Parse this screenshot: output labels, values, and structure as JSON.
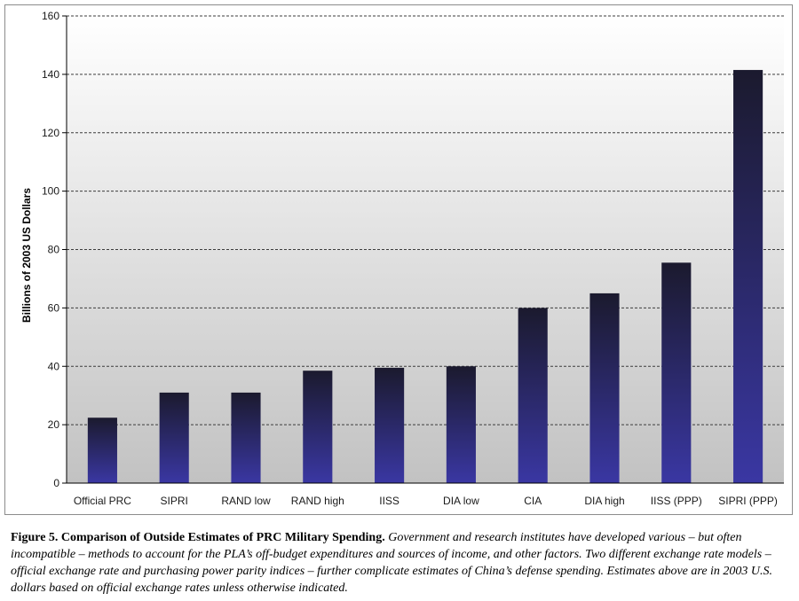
{
  "chart_data": {
    "type": "bar",
    "title": "",
    "xlabel": "",
    "ylabel": "Billions of 2003 US Dollars",
    "ylim": [
      0,
      160
    ],
    "yticks": [
      0,
      20,
      40,
      60,
      80,
      100,
      120,
      140,
      160
    ],
    "grid": true,
    "categories": [
      "Official PRC",
      "SIPRI",
      "RAND low",
      "RAND high",
      "IISS",
      "DIA low",
      "CIA",
      "DIA high",
      "IISS (PPP)",
      "SIPRI (PPP)"
    ],
    "values": [
      22.4,
      31,
      31,
      38.5,
      39.5,
      40,
      60,
      65,
      75.5,
      141.5
    ],
    "colors": {
      "bar_top": "#1b1a2e",
      "bar_bottom": "#3a37a3",
      "bg_top": "#ffffff",
      "bg_bottom": "#c2c2c2"
    }
  },
  "caption": {
    "lead": "Figure 5.  Comparison of Outside Estimates of PRC Military Spending.",
    "body": "Government and research institutes have developed various – but often incompatible – methods to account for the PLA’s off-budget expenditures and sources of income, and other factors.  Two different exchange rate models – official exchange rate and purchasing power parity indices – further complicate estimates of China’s defense spending.  Estimates above are in 2003 U.S. dollars based on official exchange rates unless otherwise indicated."
  }
}
